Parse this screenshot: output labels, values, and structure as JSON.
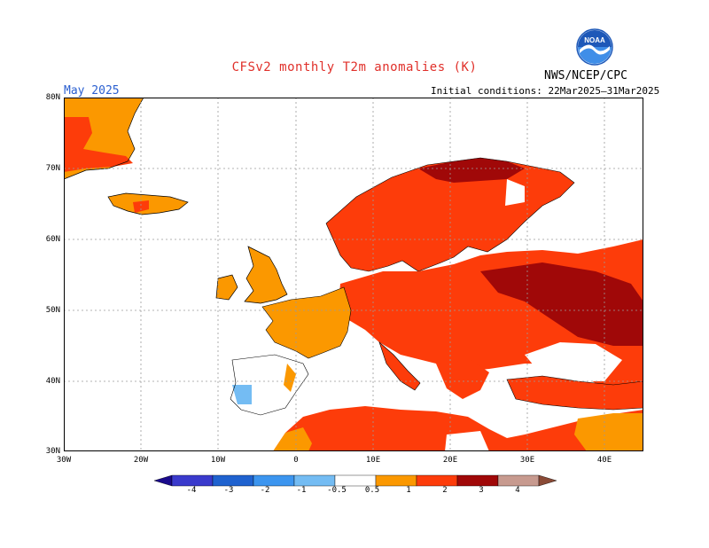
{
  "header": {
    "title": "CFSv2 monthly T2m anomalies (K)",
    "agency": "NWS/NCEP/CPC",
    "logo_text": "NOAA",
    "month": "May 2025",
    "initial_conditions": "Initial conditions: 22Mar2025–31Mar2025"
  },
  "axes": {
    "lat_labels": [
      "80N",
      "70N",
      "60N",
      "50N",
      "40N",
      "30N"
    ],
    "lon_labels": [
      "30W",
      "20W",
      "10W",
      "0",
      "10E",
      "20E",
      "30E",
      "40E"
    ]
  },
  "legend": {
    "tick_labels": [
      "-4",
      "-3",
      "-2",
      "-1",
      "-0.5",
      "0.5",
      "1",
      "2",
      "3",
      "4"
    ],
    "colors": [
      "#1a0a8c",
      "#3a3acc",
      "#1f62cf",
      "#3c95ef",
      "#74bcf3",
      "#ffffff",
      "#fb9800",
      "#fd3c0a",
      "#a00808",
      "#c79a8f",
      "#8a4a36"
    ]
  },
  "colors": {
    "land_outline": "#000000",
    "grid": "#9a9a9a",
    "neutral": "#ffffff",
    "orange": "#fb9800",
    "red": "#fd3c0a",
    "darkred": "#a00808",
    "blue": "#74bcf3"
  }
}
